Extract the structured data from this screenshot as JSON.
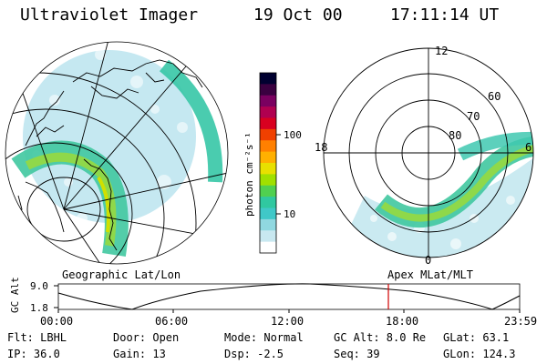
{
  "header": {
    "title": "Ultraviolet Imager",
    "date": "19 Oct 00",
    "time": "17:11:14 UT"
  },
  "colorbar": {
    "label": "photon cm⁻²s⁻¹",
    "ticks": [
      "100",
      "10"
    ],
    "colors": [
      "#000030",
      "#3a0040",
      "#7a0060",
      "#b00050",
      "#d80020",
      "#f04000",
      "#ff8000",
      "#ffb000",
      "#e8e000",
      "#a0e000",
      "#50d050",
      "#30c8a0",
      "#40c8c8",
      "#90d8e0",
      "#c8e8f0",
      "#ffffff"
    ]
  },
  "left_panel": {
    "caption": "Geographic Lat/Lon"
  },
  "right_panel": {
    "caption": "Apex MLat/MLT",
    "mlt_labels": {
      "top": "12",
      "left": "18",
      "right": "6",
      "bottom": "0"
    },
    "lat_labels": [
      "60",
      "70",
      "80"
    ]
  },
  "timeline": {
    "ylabel": "GC Alt",
    "ymax": "9.0",
    "ymin": "1.8",
    "x_ticks": [
      "00:00",
      "06:00",
      "12:00",
      "18:00",
      "23:59"
    ],
    "marker_color": "#d00000"
  },
  "info": {
    "flt": "Flt: LBHL",
    "ip": "IP: 36.0",
    "door": "Door: Open",
    "gain": "Gain: 13",
    "mode": "Mode: Normal",
    "dsp": "Dsp:  -2.5",
    "gcalt": "GC Alt: 8.0 Re",
    "seq": "Seq: 39",
    "glat": "GLat:  63.1",
    "glon": "GLon: 124.3"
  }
}
